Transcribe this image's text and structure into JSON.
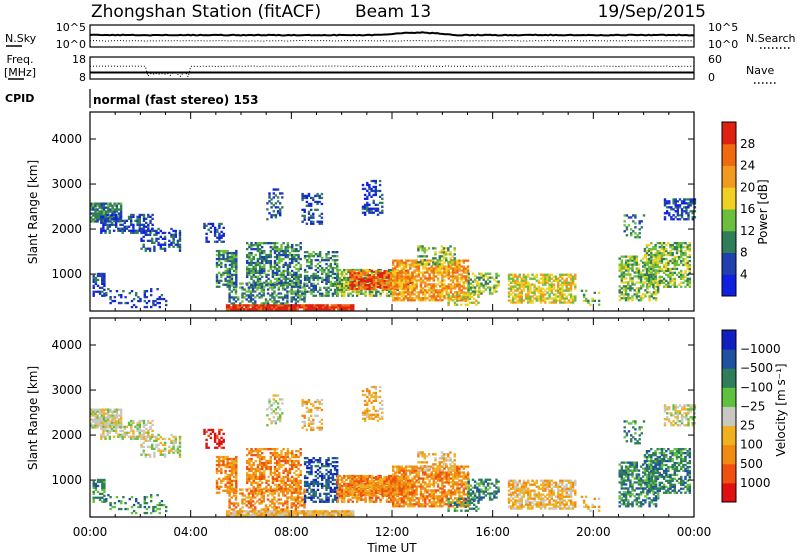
{
  "header": {
    "station": "Zhongshan Station (fitACF)",
    "beam": "Beam 13",
    "date": "19/Sep/2015"
  },
  "colors": {
    "power": [
      "#1020e0",
      "#2040b0",
      "#2f7d59",
      "#6cbf3c",
      "#f0d020",
      "#f09a20",
      "#f06a10",
      "#e02010"
    ],
    "velocity": [
      "#e01010",
      "#f05010",
      "#f08a10",
      "#f0b020",
      "#c8c8c0",
      "#60c040",
      "#2f7d59",
      "#2050a0",
      "#1020c0"
    ]
  },
  "chart_data": [
    {
      "type": "line",
      "panel": "sky-search",
      "left_label": "N.Sky",
      "right_label": "N.Search",
      "left_ticks": [
        "10^5",
        "10^0"
      ],
      "right_ticks": [
        "10^5",
        "10^0"
      ],
      "x_range_hours": [
        0,
        24
      ]
    },
    {
      "type": "scatter",
      "panel": "freq-nave",
      "left_label": "Freq.",
      "left_unit": "[MHz]",
      "right_label": "Nave",
      "left_ticks": [
        "18",
        "8"
      ],
      "right_ticks": [
        "60",
        "0"
      ],
      "x_range_hours": [
        0,
        24
      ]
    },
    {
      "type": "table",
      "panel": "cpid",
      "label": "CPID",
      "text": "normal (fast stereo) 153"
    },
    {
      "type": "heatmap",
      "panel": "power",
      "xlabel": "",
      "ylabel": "Slant Range [km]",
      "yticks": [
        "1000",
        "2000",
        "3000",
        "4000"
      ],
      "ylim": [
        180,
        4600
      ],
      "colorbar_label": "Power [dB]",
      "colorbar_ticks": [
        "4",
        "8",
        "12",
        "16",
        "20",
        "24",
        "28"
      ],
      "clim": [
        0,
        32
      ]
    },
    {
      "type": "heatmap",
      "panel": "velocity",
      "xlabel": "Time UT",
      "ylabel": "Slant Range [km]",
      "xticks": [
        "00:00",
        "04:00",
        "08:00",
        "12:00",
        "16:00",
        "20:00",
        "00:00"
      ],
      "xlim_hours": [
        0,
        24
      ],
      "yticks": [
        "1000",
        "2000",
        "3000",
        "4000"
      ],
      "ylim": [
        180,
        4600
      ],
      "colorbar_label": "Velocity [m s⁻¹]",
      "colorbar_ticks": [
        "1000",
        "500",
        "100",
        "25",
        "−25",
        "−100",
        "−500",
        "−1000"
      ]
    }
  ]
}
